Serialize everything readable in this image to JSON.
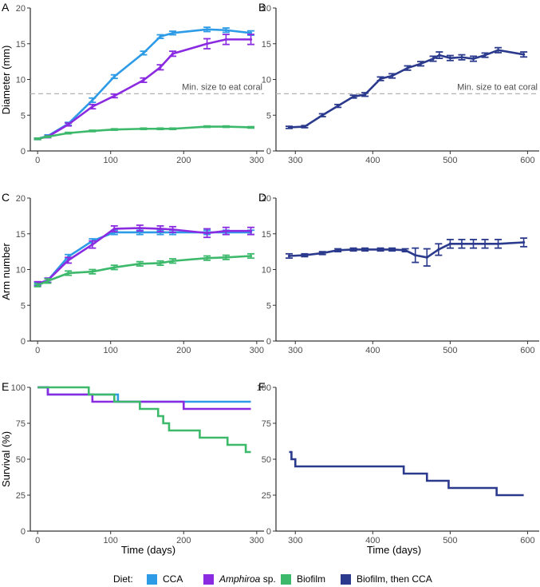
{
  "colors": {
    "CCA": "#2e9be6",
    "Amphiroa": "#8a2be2",
    "Biofilm": "#3db96c",
    "BiofilmThenCCA": "#2b3a8c"
  },
  "legend": {
    "title": "Diet:",
    "items": [
      {
        "key": "CCA",
        "pre": "CCA",
        "it": ""
      },
      {
        "key": "Amphiroa",
        "pre": "",
        "it": "Amphiroa",
        "post": " sp."
      },
      {
        "key": "Biofilm",
        "pre": "Biofilm",
        "it": ""
      },
      {
        "key": "BiofilmThenCCA",
        "pre": "Biofilm, then CCA",
        "it": ""
      }
    ]
  },
  "axis_labels": {
    "diameter": "Diameter (mm)",
    "arm": "Arm number",
    "survival": "Survival (%)",
    "time": "Time (days)"
  },
  "chart_data": [
    {
      "panel": "A",
      "type": "line",
      "ylabel": "Diameter (mm)",
      "xlim": [
        -10,
        310
      ],
      "ylim": [
        0,
        20
      ],
      "xticks": [
        0,
        100,
        200,
        300
      ],
      "yticks": [
        0,
        5,
        10,
        15,
        20
      ],
      "hline": {
        "y": 8,
        "label": "Min. size to eat coral"
      },
      "series": [
        {
          "key": "CCA",
          "x": [
            0,
            14,
            42,
            75,
            105,
            145,
            168,
            185,
            232,
            258,
            292
          ],
          "y": [
            1.7,
            2.1,
            3.8,
            7.1,
            10.4,
            13.7,
            16.0,
            16.5,
            17.0,
            16.9,
            16.5
          ],
          "err": [
            0.1,
            0.15,
            0.2,
            0.3,
            0.25,
            0.25,
            0.25,
            0.25,
            0.3,
            0.3,
            0.3
          ]
        },
        {
          "key": "Amphiroa",
          "x": [
            0,
            14,
            42,
            75,
            105,
            145,
            168,
            185,
            232,
            258,
            292
          ],
          "y": [
            1.7,
            2.0,
            3.7,
            6.2,
            7.7,
            9.9,
            11.7,
            13.6,
            15.0,
            15.6,
            15.6
          ],
          "err": [
            0.1,
            0.15,
            0.2,
            0.3,
            0.25,
            0.3,
            0.35,
            0.35,
            0.7,
            0.7,
            0.7
          ]
        },
        {
          "key": "Biofilm",
          "x": [
            0,
            14,
            42,
            75,
            105,
            145,
            168,
            185,
            232,
            258,
            292
          ],
          "y": [
            1.7,
            2.0,
            2.5,
            2.8,
            3.0,
            3.1,
            3.1,
            3.1,
            3.4,
            3.4,
            3.3
          ],
          "err": [
            0.1,
            0.1,
            0.1,
            0.1,
            0.1,
            0.1,
            0.1,
            0.1,
            0.1,
            0.1,
            0.1
          ]
        }
      ]
    },
    {
      "panel": "B",
      "type": "line",
      "ylabel": "",
      "xlim": [
        275,
        615
      ],
      "ylim": [
        0,
        20
      ],
      "xticks": [
        300,
        400,
        500,
        600
      ],
      "yticks": [
        0,
        5,
        10,
        15,
        20
      ],
      "hline": {
        "y": 8,
        "label": "Min. size to eat coral"
      },
      "series": [
        {
          "key": "BiofilmThenCCA",
          "x": [
            292,
            312,
            335,
            355,
            375,
            390,
            410,
            425,
            445,
            462,
            478,
            486,
            500,
            515,
            530,
            545,
            562,
            595
          ],
          "y": [
            3.3,
            3.4,
            5.0,
            6.3,
            7.6,
            7.9,
            10.1,
            10.5,
            11.6,
            12.2,
            12.9,
            13.4,
            13.0,
            13.1,
            12.9,
            13.4,
            14.1,
            13.5
          ],
          "err": [
            0.15,
            0.15,
            0.2,
            0.2,
            0.2,
            0.25,
            0.25,
            0.3,
            0.3,
            0.3,
            0.35,
            0.45,
            0.35,
            0.35,
            0.35,
            0.3,
            0.35,
            0.35
          ]
        }
      ]
    },
    {
      "panel": "C",
      "type": "line",
      "ylabel": "Arm number",
      "xlim": [
        -10,
        310
      ],
      "ylim": [
        0,
        20
      ],
      "xticks": [
        0,
        100,
        200,
        300
      ],
      "yticks": [
        0,
        5,
        10,
        15,
        20
      ],
      "series": [
        {
          "key": "CCA",
          "x": [
            0,
            14,
            42,
            75,
            105,
            140,
            168,
            185,
            232,
            258,
            292
          ],
          "y": [
            8.0,
            8.5,
            11.8,
            14.0,
            15.2,
            15.2,
            15.2,
            15.2,
            15.2,
            15.2,
            15.2
          ],
          "err": [
            0.2,
            0.3,
            0.3,
            0.3,
            0.3,
            0.3,
            0.3,
            0.3,
            0.3,
            0.3,
            0.3
          ]
        },
        {
          "key": "Amphiroa",
          "x": [
            0,
            14,
            42,
            75,
            105,
            140,
            168,
            185,
            232,
            258,
            292
          ],
          "y": [
            8.0,
            8.5,
            11.3,
            13.5,
            15.7,
            15.8,
            15.7,
            15.6,
            15.1,
            15.4,
            15.4
          ],
          "err": [
            0.3,
            0.3,
            0.4,
            0.5,
            0.4,
            0.4,
            0.4,
            0.4,
            0.6,
            0.5,
            0.5
          ]
        },
        {
          "key": "Biofilm",
          "x": [
            0,
            14,
            42,
            75,
            105,
            140,
            168,
            185,
            232,
            258,
            292
          ],
          "y": [
            7.8,
            8.4,
            9.5,
            9.7,
            10.3,
            10.8,
            10.9,
            11.2,
            11.6,
            11.7,
            11.9
          ],
          "err": [
            0.2,
            0.3,
            0.3,
            0.3,
            0.3,
            0.3,
            0.3,
            0.3,
            0.3,
            0.3,
            0.3
          ]
        }
      ]
    },
    {
      "panel": "D",
      "type": "line",
      "ylabel": "",
      "xlim": [
        275,
        615
      ],
      "ylim": [
        0,
        20
      ],
      "xticks": [
        300,
        400,
        500,
        600
      ],
      "yticks": [
        0,
        5,
        10,
        15,
        20
      ],
      "series": [
        {
          "key": "BiofilmThenCCA",
          "x": [
            292,
            312,
            335,
            355,
            375,
            390,
            410,
            425,
            442,
            455,
            470,
            485,
            500,
            515,
            530,
            545,
            562,
            595
          ],
          "y": [
            11.9,
            12.0,
            12.3,
            12.7,
            12.8,
            12.8,
            12.8,
            12.8,
            12.7,
            12.0,
            11.7,
            12.8,
            13.6,
            13.6,
            13.6,
            13.6,
            13.6,
            13.8
          ],
          "err": [
            0.3,
            0.2,
            0.2,
            0.2,
            0.2,
            0.2,
            0.2,
            0.2,
            0.2,
            1.0,
            1.2,
            0.8,
            0.6,
            0.6,
            0.6,
            0.6,
            0.6,
            0.6
          ]
        }
      ]
    },
    {
      "panel": "E",
      "type": "step",
      "ylabel": "Survival (%)",
      "xlabel": "Time (days)",
      "xlim": [
        -10,
        310
      ],
      "ylim": [
        0,
        100
      ],
      "xticks": [
        0,
        100,
        200,
        300
      ],
      "yticks": [
        0,
        25,
        50,
        75,
        100
      ],
      "series": [
        {
          "key": "CCA",
          "x": [
            0,
            14,
            110,
            292
          ],
          "y": [
            100,
            95,
            90,
            90
          ]
        },
        {
          "key": "Amphiroa",
          "x": [
            0,
            14,
            75,
            200,
            292
          ],
          "y": [
            100,
            95,
            90,
            85,
            85
          ]
        },
        {
          "key": "Biofilm",
          "x": [
            0,
            70,
            105,
            140,
            165,
            172,
            180,
            190,
            222,
            260,
            285,
            292
          ],
          "y": [
            100,
            95,
            90,
            85,
            80,
            75,
            70,
            70,
            65,
            60,
            55,
            55
          ]
        }
      ]
    },
    {
      "panel": "F",
      "type": "step",
      "ylabel": "",
      "xlabel": "Time (days)",
      "xlim": [
        275,
        615
      ],
      "ylim": [
        0,
        100
      ],
      "xticks": [
        300,
        400,
        500,
        600
      ],
      "yticks": [
        0,
        25,
        50,
        75,
        100
      ],
      "series": [
        {
          "key": "BiofilmThenCCA",
          "x": [
            292,
            295,
            300,
            440,
            470,
            498,
            560,
            595
          ],
          "y": [
            55,
            50,
            45,
            40,
            35,
            30,
            25,
            25
          ]
        }
      ]
    }
  ]
}
